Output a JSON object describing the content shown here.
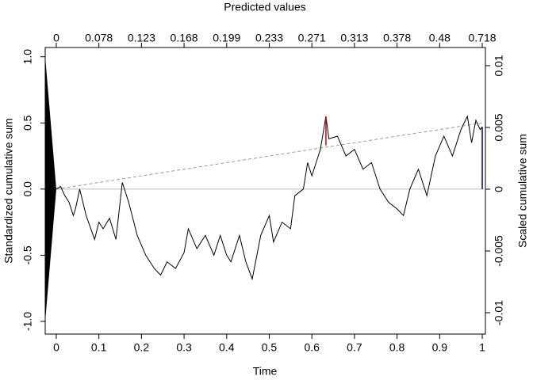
{
  "chart_data": {
    "type": "line",
    "title": "Predicted values",
    "x_label": "Time",
    "y_label": "Standardized cumulative sum",
    "y2_label": "Scaled cumulative sum",
    "xlim": [
      -0.026,
      1.0074
    ],
    "ylim": [
      -1.096,
      1.07
    ],
    "y2lim": [
      -0.01173,
      0.01147
    ],
    "xticks": [
      0,
      0.1,
      0.2,
      0.3,
      0.4,
      0.5,
      0.6,
      0.7,
      0.8,
      0.9,
      1
    ],
    "top_ticks": [
      {
        "value": 0,
        "label": "0"
      },
      {
        "value": 0.1,
        "label": "0.078"
      },
      {
        "value": 0.2,
        "label": "0.123"
      },
      {
        "value": 0.3,
        "label": "0.168"
      },
      {
        "value": 0.4,
        "label": "0.199"
      },
      {
        "value": 0.5,
        "label": "0.233"
      },
      {
        "value": 0.6,
        "label": "0.271"
      },
      {
        "value": 0.7,
        "label": "0.313"
      },
      {
        "value": 0.8,
        "label": "0.378"
      },
      {
        "value": 0.9,
        "label": "0.48"
      },
      {
        "value": 1,
        "label": "0.718"
      }
    ],
    "yticks": [
      {
        "value": -1,
        "label": "-1.0"
      },
      {
        "value": -0.5,
        "label": "-0.5"
      },
      {
        "value": 0,
        "label": "0.0"
      },
      {
        "value": 0.5,
        "label": "0.5"
      },
      {
        "value": 1,
        "label": "1.0"
      }
    ],
    "y2ticks": [
      -0.01,
      -0.005,
      0,
      0.005,
      0.01
    ],
    "x": [
      0,
      0.01,
      0.02,
      0.03,
      0.04,
      0.045,
      0.055,
      0.07,
      0.09,
      0.1,
      0.11,
      0.125,
      0.14,
      0.155,
      0.17,
      0.19,
      0.21,
      0.23,
      0.245,
      0.26,
      0.28,
      0.3,
      0.31,
      0.33,
      0.35,
      0.37,
      0.385,
      0.4,
      0.41,
      0.43,
      0.445,
      0.46,
      0.48,
      0.5,
      0.51,
      0.53,
      0.55,
      0.56,
      0.58,
      0.59,
      0.6,
      0.62,
      0.633,
      0.64,
      0.66,
      0.68,
      0.7,
      0.72,
      0.74,
      0.76,
      0.78,
      0.8,
      0.815,
      0.83,
      0.85,
      0.87,
      0.89,
      0.91,
      0.93,
      0.95,
      0.965,
      0.975,
      0.985,
      0.995,
      1.0
    ],
    "series": [
      {
        "color": "#000000",
        "values": [
          0,
          0.02,
          -0.05,
          -0.1,
          -0.2,
          -0.15,
          0.0,
          -0.2,
          -0.38,
          -0.25,
          -0.3,
          -0.22,
          -0.38,
          0.05,
          -0.1,
          -0.35,
          -0.5,
          -0.6,
          -0.65,
          -0.55,
          -0.6,
          -0.48,
          -0.3,
          -0.45,
          -0.35,
          -0.5,
          -0.35,
          -0.5,
          -0.55,
          -0.35,
          -0.55,
          -0.68,
          -0.35,
          -0.2,
          -0.4,
          -0.25,
          -0.3,
          -0.05,
          0.0,
          0.2,
          0.1,
          0.3,
          0.55,
          0.38,
          0.4,
          0.25,
          0.3,
          0.15,
          0.2,
          0.0,
          -0.1,
          -0.15,
          -0.2,
          0.0,
          0.15,
          -0.05,
          0.25,
          0.4,
          0.25,
          0.45,
          0.55,
          0.35,
          0.52,
          0.45,
          0.47
        ]
      }
    ],
    "fan": {
      "x": [
        -0.026,
        0,
        -0.026
      ],
      "y": [
        1.0,
        0,
        -1.0
      ],
      "color": "#000000"
    },
    "zero_line": {
      "y": 0,
      "color": "#bebebe"
    },
    "trend_line": {
      "x": [
        0,
        1
      ],
      "y": [
        0,
        0.5
      ],
      "color": "#9a9a9a"
    },
    "max_segment": {
      "x": 0.633,
      "y": [
        0.33,
        0.55
      ],
      "color": "#cc0000"
    },
    "end_segment": {
      "x": 1,
      "y": [
        0,
        0.47
      ],
      "color": "#00008b"
    }
  }
}
